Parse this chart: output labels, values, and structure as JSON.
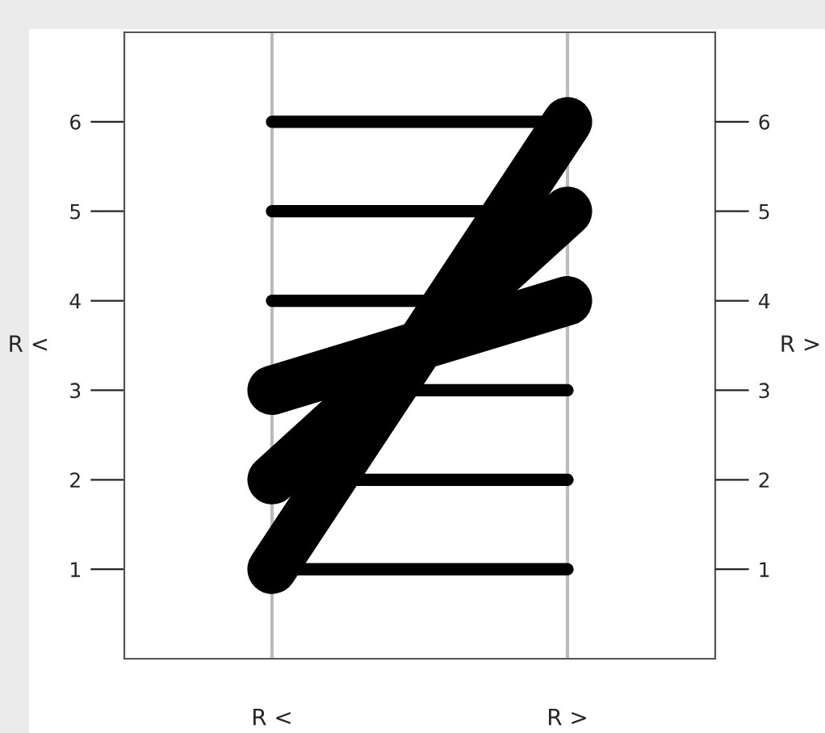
{
  "chart_data": {
    "type": "line",
    "categories": [
      "R <",
      "R >"
    ],
    "ylabel": "R <",
    "y2label": "R >",
    "ylim": [
      0,
      7
    ],
    "yticks": [
      1,
      2,
      3,
      4,
      5,
      6
    ],
    "y2lim": [
      0,
      7
    ],
    "y2ticks": [
      1,
      2,
      3,
      4,
      5,
      6
    ],
    "grid": "x",
    "marker": "none",
    "line_style": "solid",
    "series": [
      {
        "color": "#000000",
        "values": [
          6,
          6
        ]
      },
      {
        "color": "#000000",
        "values": [
          5,
          5
        ]
      },
      {
        "color": "#000000",
        "values": [
          4,
          4
        ]
      },
      {
        "color": "#000000",
        "values": [
          3,
          3
        ]
      },
      {
        "color": "#000000",
        "values": [
          2,
          2
        ]
      },
      {
        "color": "#000000",
        "values": [
          1,
          1
        ]
      },
      {
        "color": "#000000",
        "values": [
          3,
          4
        ]
      },
      {
        "color": "#000000",
        "values": [
          2,
          5
        ]
      },
      {
        "color": "#000000",
        "values": [
          1,
          6
        ]
      }
    ]
  }
}
